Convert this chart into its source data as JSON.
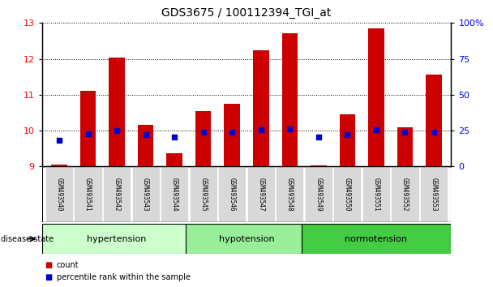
{
  "title": "GDS3675 / 100112394_TGI_at",
  "samples": [
    "GSM493540",
    "GSM493541",
    "GSM493542",
    "GSM493543",
    "GSM493544",
    "GSM493545",
    "GSM493546",
    "GSM493547",
    "GSM493548",
    "GSM493549",
    "GSM493550",
    "GSM493551",
    "GSM493552",
    "GSM493553"
  ],
  "count_values": [
    9.05,
    11.1,
    12.03,
    10.15,
    9.38,
    10.55,
    10.75,
    12.25,
    12.72,
    9.02,
    10.45,
    12.85,
    10.1,
    11.55
  ],
  "percentile_values": [
    9.72,
    9.92,
    10.0,
    9.88,
    9.82,
    9.95,
    9.95,
    10.02,
    10.05,
    9.82,
    9.88,
    10.02,
    9.95,
    9.95
  ],
  "groups": [
    {
      "label": "hypertension",
      "start": 0,
      "end": 5
    },
    {
      "label": "hypotension",
      "start": 5,
      "end": 9
    },
    {
      "label": "normotension",
      "start": 9,
      "end": 14
    }
  ],
  "group_colors": [
    "#ccffcc",
    "#99ee99",
    "#44cc44"
  ],
  "ylim_left": [
    9,
    13
  ],
  "yticks_left": [
    9,
    10,
    11,
    12,
    13
  ],
  "ylim_right": [
    0,
    100
  ],
  "yticks_right": [
    0,
    25,
    50,
    75,
    100
  ],
  "bar_color": "#cc0000",
  "dot_color": "#0000cc",
  "bar_width": 0.55,
  "bg_color": "#ffffff",
  "label_bg": "#d8d8d8"
}
